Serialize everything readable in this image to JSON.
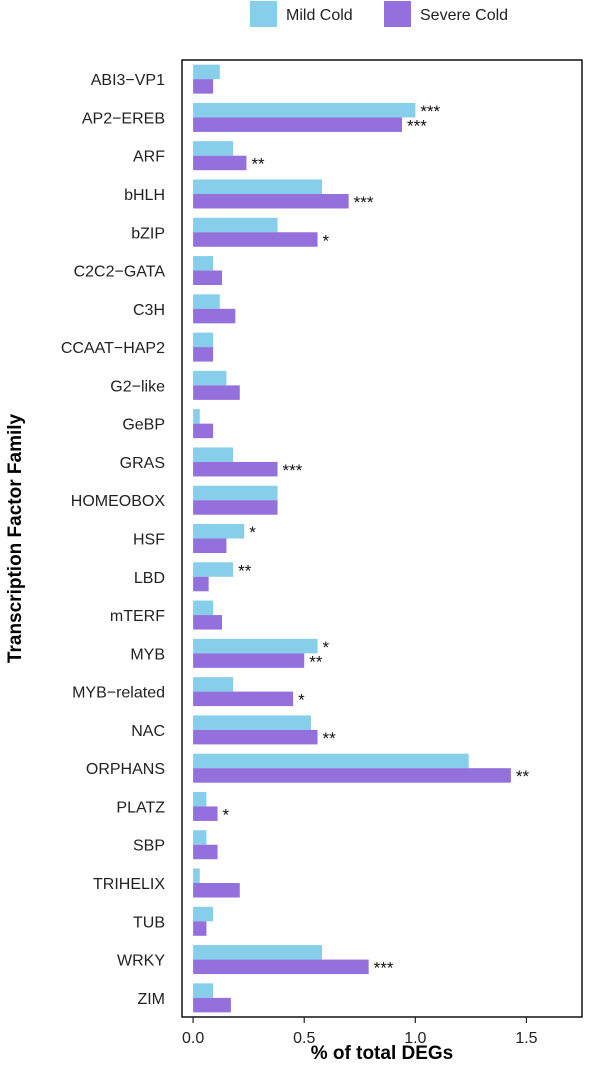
{
  "chart_data": {
    "type": "bar",
    "orientation": "horizontal",
    "categories": [
      "ABI3−VP1",
      "AP2−EREB",
      "ARF",
      "bHLH",
      "bZIP",
      "C2C2−GATA",
      "C3H",
      "CCAAT−HAP2",
      "G2−like",
      "GeBP",
      "GRAS",
      "HOMEOBOX",
      "HSF",
      "LBD",
      "mTERF",
      "MYB",
      "MYB−related",
      "NAC",
      "ORPHANS",
      "PLATZ",
      "SBP",
      "TRIHELIX",
      "TUB",
      "WRKY",
      "ZIM"
    ],
    "series": [
      {
        "name": "Mild Cold",
        "color": "#87CEEB",
        "values": [
          0.12,
          1.0,
          0.18,
          0.58,
          0.38,
          0.09,
          0.12,
          0.09,
          0.15,
          0.03,
          0.18,
          0.38,
          0.23,
          0.18,
          0.09,
          0.56,
          0.18,
          0.53,
          1.24,
          0.06,
          0.06,
          0.03,
          0.09,
          0.58,
          0.09
        ],
        "significance": [
          "",
          "***",
          "",
          "",
          "",
          "",
          "",
          "",
          "",
          "",
          "",
          "",
          "*",
          "**",
          "",
          "*",
          "",
          "",
          "",
          "",
          "",
          "",
          "",
          "",
          ""
        ]
      },
      {
        "name": "Severe Cold",
        "color": "#9370DB",
        "values": [
          0.09,
          0.94,
          0.24,
          0.7,
          0.56,
          0.13,
          0.19,
          0.09,
          0.21,
          0.09,
          0.38,
          0.38,
          0.15,
          0.07,
          0.13,
          0.5,
          0.45,
          0.56,
          1.43,
          0.11,
          0.11,
          0.21,
          0.06,
          0.79,
          0.17
        ],
        "significance": [
          "",
          "***",
          "**",
          "***",
          "*",
          "",
          "",
          "",
          "",
          "",
          "***",
          "",
          "",
          "",
          "",
          "**",
          "*",
          "**",
          "**",
          "*",
          "",
          "",
          "",
          "***",
          ""
        ]
      }
    ],
    "xlabel": "% of total DEGs",
    "ylabel": "Transcription Factor Family",
    "xlim": [
      -0.05,
      1.75
    ],
    "xticks": [
      0.0,
      0.5,
      1.0,
      1.5
    ],
    "xtick_labels": [
      "0.0",
      "0.5",
      "1.0",
      "1.5"
    ],
    "legend_position": "top",
    "grid": false
  }
}
